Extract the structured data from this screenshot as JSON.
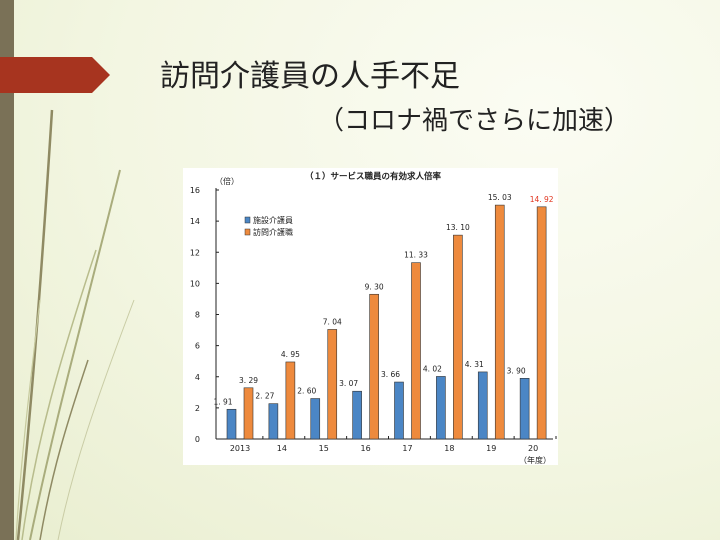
{
  "slide": {
    "title": "訪問介護員の人手不足",
    "subtitle": "（コロナ禍でさらに加速）"
  },
  "colors": {
    "background": "#f3f6e2",
    "left_bar": "#7a7157",
    "accent_arrow": "#a7341f",
    "series_facility": "#4b86c5",
    "series_home": "#ee8a3d",
    "highlight_label": "#e0341e"
  },
  "chart_data": {
    "type": "bar",
    "title": "（１）サービス職員の有効求人倍率",
    "ylabel": "（倍）",
    "xunit": "（年度）",
    "categories": [
      "2013",
      "14",
      "15",
      "16",
      "17",
      "18",
      "19",
      "20"
    ],
    "ylim": [
      0,
      16
    ],
    "yticks": [
      "0",
      "2",
      "4",
      "6",
      "8",
      "10",
      "12",
      "14",
      "16"
    ],
    "series": [
      {
        "name": "施設介護員",
        "values": [
          1.91,
          2.27,
          2.6,
          3.07,
          3.66,
          4.02,
          4.31,
          3.9
        ],
        "labels": [
          "1. 91",
          "2. 27",
          "2. 60",
          "3. 07",
          "3. 66",
          "4. 02",
          "4. 31",
          "3. 90"
        ]
      },
      {
        "name": "訪問介護職",
        "values": [
          3.29,
          4.95,
          7.04,
          9.3,
          11.33,
          13.1,
          15.03,
          14.92
        ],
        "labels": [
          "3. 29",
          "4. 95",
          "7. 04",
          "9. 30",
          "11. 33",
          "13. 10",
          "15. 03",
          "14. 92"
        ]
      }
    ],
    "highlight": {
      "series": 1,
      "index": 7
    },
    "legend_position": "upper-left",
    "grid": false
  }
}
